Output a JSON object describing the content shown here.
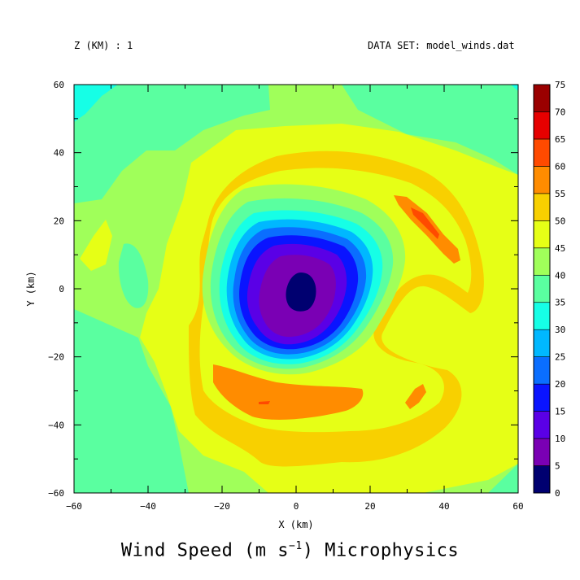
{
  "header": {
    "left_text": "Z (KM) : 1",
    "right_text": "DATA SET: model_winds.dat"
  },
  "footer_title": {
    "prefix": "Wind Speed (m s",
    "exponent": "−1",
    "suffix": ") Microphysics"
  },
  "chart_data": {
    "type": "heatmap",
    "title": "Wind Speed (m s−1) Microphysics",
    "xlabel": "X (km)",
    "ylabel": "Y (km)",
    "xlim": [
      -60,
      60
    ],
    "ylim": [
      -60,
      60
    ],
    "x_ticks": [
      -60,
      -40,
      -20,
      0,
      20,
      40,
      60
    ],
    "y_ticks": [
      -60,
      -40,
      -20,
      0,
      20,
      40,
      60
    ],
    "grid": false,
    "colorbar": {
      "levels": [
        0,
        5,
        10,
        15,
        20,
        25,
        30,
        35,
        40,
        45,
        50,
        55,
        60,
        65,
        70,
        75
      ],
      "colors": [
        "#000070",
        "#7a00b4",
        "#5a00e6",
        "#0a14ff",
        "#0a6eff",
        "#00b8ff",
        "#16ffe6",
        "#5affa0",
        "#a0ff5a",
        "#e6ff16",
        "#f8d000",
        "#ff8c00",
        "#ff4a00",
        "#e60000",
        "#9a0000"
      ]
    },
    "features": {
      "vortex_center_km": [
        2,
        0
      ],
      "eye_max_speed": 5,
      "background_speed_range": [
        40,
        50
      ],
      "max_speed_bands": [
        55,
        60
      ]
    }
  }
}
